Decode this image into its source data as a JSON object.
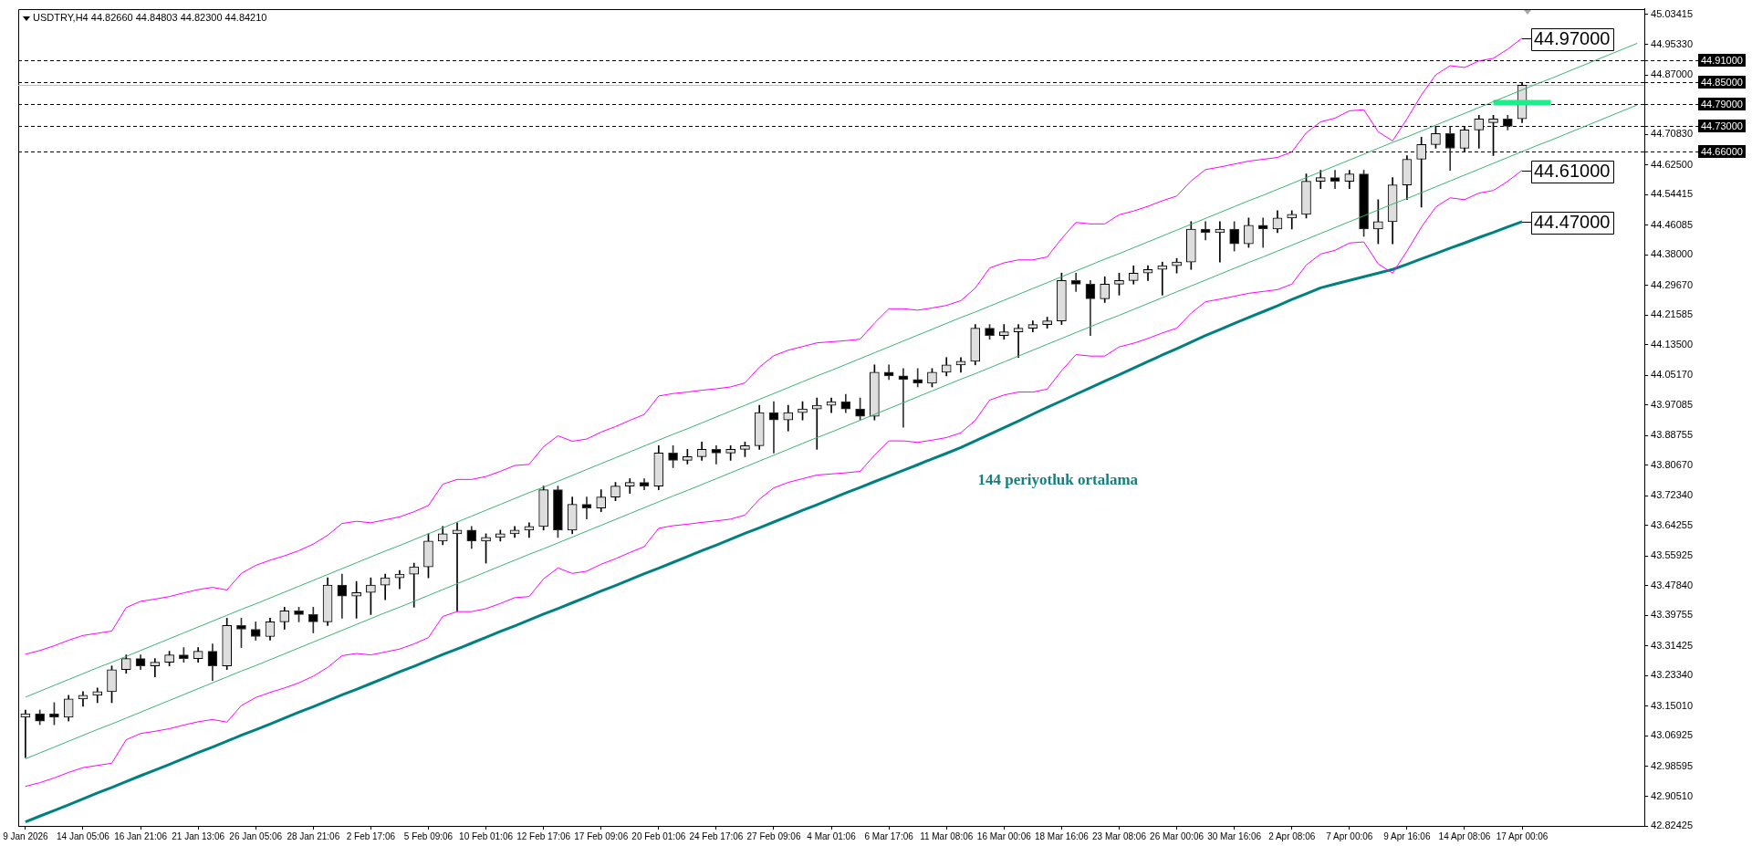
{
  "chart_data": {
    "type": "candlestick",
    "title": "USDTRY,H4 44.82660 44.84803 44.82300 44.84210",
    "categories": [
      "9 Jan 2026",
      null,
      null,
      null,
      "14 Jan 05:06",
      null,
      null,
      null,
      "16 Jan 21:06",
      null,
      null,
      null,
      "21 Jan 13:06",
      null,
      null,
      null,
      "26 Jan 05:06",
      null,
      null,
      null,
      "28 Jan 21:06",
      null,
      null,
      null,
      "2 Feb 17:06",
      null,
      null,
      null,
      "5 Feb 09:06",
      null,
      null,
      null,
      "10 Feb 01:06",
      null,
      null,
      null,
      "12 Feb 17:06",
      null,
      null,
      null,
      "17 Feb 09:06",
      null,
      null,
      null,
      "20 Feb 01:06",
      null,
      null,
      null,
      "24 Feb 17:06",
      null,
      null,
      null,
      "27 Feb 09:06",
      null,
      null,
      null,
      "4 Mar 01:06",
      null,
      null,
      null,
      "6 Mar 17:06",
      null,
      null,
      null,
      "11 Mar 08:06",
      null,
      null,
      null,
      "16 Mar 00:06",
      null,
      null,
      null,
      "18 Mar 16:06",
      null,
      null,
      null,
      "23 Mar 08:06",
      null,
      null,
      null,
      "26 Mar 00:06",
      null,
      null,
      null,
      "30 Mar 16:06",
      null,
      null,
      null,
      "2 Apr 08:06",
      null,
      null,
      null,
      "7 Apr 00:06",
      null,
      null,
      null,
      "9 Apr 16:06",
      null,
      null,
      null,
      "14 Apr 08:06",
      null,
      null,
      null,
      "17 Apr 00:06",
      null,
      null,
      null,
      null,
      null,
      null,
      null,
      null
    ],
    "ohlc": [
      [
        43.12,
        43.14,
        43.01,
        43.13
      ],
      [
        43.13,
        43.14,
        43.1,
        43.11
      ],
      [
        43.13,
        43.16,
        43.1,
        43.12
      ],
      [
        43.12,
        43.18,
        43.11,
        43.17
      ],
      [
        43.17,
        43.19,
        43.15,
        43.18
      ],
      [
        43.18,
        43.2,
        43.16,
        43.19
      ],
      [
        43.19,
        43.26,
        43.16,
        43.25
      ],
      [
        43.25,
        43.29,
        43.24,
        43.28
      ],
      [
        43.28,
        43.29,
        43.25,
        43.26
      ],
      [
        43.26,
        43.28,
        43.23,
        43.27
      ],
      [
        43.27,
        43.3,
        43.26,
        43.29
      ],
      [
        43.29,
        43.31,
        43.27,
        43.28
      ],
      [
        43.28,
        43.31,
        43.27,
        43.3
      ],
      [
        43.3,
        43.32,
        43.22,
        43.26
      ],
      [
        43.26,
        43.39,
        43.25,
        43.37
      ],
      [
        43.37,
        43.39,
        43.31,
        43.36
      ],
      [
        43.36,
        43.38,
        43.33,
        43.34
      ],
      [
        43.34,
        43.39,
        43.33,
        43.38
      ],
      [
        43.38,
        43.42,
        43.36,
        43.41
      ],
      [
        43.41,
        43.42,
        43.38,
        43.4
      ],
      [
        43.4,
        43.42,
        43.35,
        43.38
      ],
      [
        43.38,
        43.5,
        43.37,
        43.48
      ],
      [
        43.48,
        43.51,
        43.39,
        43.45
      ],
      [
        43.45,
        43.49,
        43.39,
        43.46
      ],
      [
        43.46,
        43.5,
        43.4,
        43.48
      ],
      [
        43.48,
        43.51,
        43.44,
        43.5
      ],
      [
        43.5,
        43.52,
        43.47,
        43.51
      ],
      [
        43.51,
        43.54,
        43.42,
        43.53
      ],
      [
        43.53,
        43.62,
        43.5,
        43.6
      ],
      [
        43.6,
        43.64,
        43.59,
        43.62
      ],
      [
        43.62,
        43.65,
        43.41,
        43.63
      ],
      [
        43.63,
        43.64,
        43.58,
        43.6
      ],
      [
        43.6,
        43.62,
        43.54,
        43.61
      ],
      [
        43.61,
        43.63,
        43.6,
        43.62
      ],
      [
        43.62,
        43.64,
        43.61,
        43.63
      ],
      [
        43.63,
        43.65,
        43.61,
        43.64
      ],
      [
        43.64,
        43.75,
        43.63,
        43.74
      ],
      [
        43.74,
        43.75,
        43.61,
        43.63
      ],
      [
        43.63,
        43.72,
        43.62,
        43.7
      ],
      [
        43.7,
        43.72,
        43.66,
        43.69
      ],
      [
        43.69,
        43.74,
        43.68,
        43.72
      ],
      [
        43.72,
        43.76,
        43.71,
        43.75
      ],
      [
        43.75,
        43.77,
        43.73,
        43.76
      ],
      [
        43.76,
        43.77,
        43.74,
        43.75
      ],
      [
        43.75,
        43.86,
        43.74,
        43.84
      ],
      [
        43.84,
        43.86,
        43.8,
        43.82
      ],
      [
        43.82,
        43.85,
        43.81,
        43.83
      ],
      [
        43.83,
        43.87,
        43.82,
        43.85
      ],
      [
        43.85,
        43.86,
        43.81,
        43.84
      ],
      [
        43.84,
        43.86,
        43.82,
        43.85
      ],
      [
        43.85,
        43.87,
        43.83,
        43.86
      ],
      [
        43.86,
        43.97,
        43.85,
        43.95
      ],
      [
        43.95,
        43.98,
        43.84,
        43.93
      ],
      [
        43.93,
        43.97,
        43.9,
        43.95
      ],
      [
        43.95,
        43.98,
        43.93,
        43.96
      ],
      [
        43.96,
        43.99,
        43.85,
        43.97
      ],
      [
        43.97,
        43.99,
        43.95,
        43.98
      ],
      [
        43.98,
        44.0,
        43.95,
        43.96
      ],
      [
        43.96,
        43.99,
        43.93,
        43.94
      ],
      [
        43.94,
        44.08,
        43.93,
        44.06
      ],
      [
        44.06,
        44.08,
        44.04,
        44.05
      ],
      [
        44.05,
        44.07,
        43.91,
        44.04
      ],
      [
        44.04,
        44.07,
        44.02,
        44.03
      ],
      [
        44.03,
        44.07,
        44.02,
        44.06
      ],
      [
        44.06,
        44.1,
        44.05,
        44.08
      ],
      [
        44.08,
        44.1,
        44.06,
        44.09
      ],
      [
        44.09,
        44.19,
        44.08,
        44.18
      ],
      [
        44.18,
        44.19,
        44.15,
        44.16
      ],
      [
        44.16,
        44.19,
        44.15,
        44.17
      ],
      [
        44.17,
        44.19,
        44.1,
        44.18
      ],
      [
        44.18,
        44.2,
        44.17,
        44.19
      ],
      [
        44.19,
        44.21,
        44.18,
        44.2
      ],
      [
        44.2,
        44.33,
        44.19,
        44.31
      ],
      [
        44.31,
        44.33,
        44.28,
        44.3
      ],
      [
        44.3,
        44.31,
        44.16,
        44.26
      ],
      [
        44.26,
        44.32,
        44.25,
        44.3
      ],
      [
        44.3,
        44.33,
        44.27,
        44.31
      ],
      [
        44.31,
        44.35,
        44.3,
        44.33
      ],
      [
        44.33,
        44.35,
        44.31,
        44.34
      ],
      [
        44.34,
        44.36,
        44.27,
        44.35
      ],
      [
        44.35,
        44.37,
        44.33,
        44.36
      ],
      [
        44.36,
        44.47,
        44.34,
        44.45
      ],
      [
        44.45,
        44.47,
        44.42,
        44.44
      ],
      [
        44.44,
        44.47,
        44.36,
        44.45
      ],
      [
        44.45,
        44.47,
        44.39,
        44.41
      ],
      [
        44.41,
        44.48,
        44.4,
        44.46
      ],
      [
        44.46,
        44.48,
        44.4,
        44.45
      ],
      [
        44.45,
        44.5,
        44.44,
        44.48
      ],
      [
        44.48,
        44.5,
        44.45,
        44.49
      ],
      [
        44.49,
        44.6,
        44.48,
        44.58
      ],
      [
        44.58,
        44.61,
        44.56,
        44.59
      ],
      [
        44.59,
        44.61,
        44.56,
        44.58
      ],
      [
        44.58,
        44.61,
        44.56,
        44.6
      ],
      [
        44.6,
        44.61,
        44.43,
        44.45
      ],
      [
        44.45,
        44.53,
        44.41,
        44.47
      ],
      [
        44.47,
        44.59,
        44.41,
        44.57
      ],
      [
        44.57,
        44.65,
        44.53,
        44.64
      ],
      [
        44.64,
        44.7,
        44.51,
        44.68
      ],
      [
        44.68,
        44.73,
        44.67,
        44.71
      ],
      [
        44.71,
        44.73,
        44.61,
        44.67
      ],
      [
        44.67,
        44.73,
        44.66,
        44.72
      ],
      [
        44.72,
        44.76,
        44.67,
        44.75
      ],
      [
        44.74,
        44.76,
        44.65,
        44.75
      ],
      [
        44.75,
        44.76,
        44.72,
        44.73
      ],
      [
        44.75,
        44.84803,
        44.74,
        44.8421
      ],
      null,
      null,
      null,
      null,
      null,
      null,
      null,
      null
    ],
    "series": [
      {
        "type": "line",
        "color": "#ff00ff",
        "values": [
          43.292,
          43.302,
          43.315,
          43.33,
          43.343,
          43.349,
          43.355,
          43.419,
          43.436,
          43.442,
          43.449,
          43.459,
          43.468,
          43.474,
          43.467,
          43.512,
          43.534,
          43.548,
          43.56,
          43.574,
          43.592,
          43.616,
          43.648,
          43.654,
          43.65,
          43.658,
          43.666,
          43.68,
          43.697,
          43.755,
          43.768,
          43.768,
          43.776,
          43.79,
          43.806,
          43.809,
          43.857,
          43.887,
          43.872,
          43.878,
          43.897,
          43.912,
          43.929,
          43.945,
          43.995,
          44.002,
          44.006,
          44.011,
          44.015,
          44.02,
          44.031,
          44.074,
          44.105,
          44.12,
          44.13,
          44.14,
          44.143,
          44.146,
          44.15,
          44.194,
          44.233,
          44.233,
          44.229,
          44.235,
          44.242,
          44.255,
          44.289,
          44.344,
          44.358,
          44.366,
          44.366,
          44.374,
          44.424,
          44.468,
          44.464,
          44.464,
          44.489,
          44.499,
          44.512,
          44.527,
          44.54,
          44.581,
          44.612,
          44.619,
          44.627,
          44.635,
          44.64,
          44.645,
          44.66,
          44.712,
          44.742,
          44.752,
          44.772,
          44.775,
          44.715,
          44.69,
          44.75,
          44.815,
          44.87,
          44.895,
          44.89,
          44.908,
          44.915,
          44.94,
          44.97,
          null,
          null,
          null,
          null,
          null,
          null,
          null,
          null
        ],
        "value_labels": [
          null,
          null,
          null,
          null,
          null,
          null,
          null,
          null,
          null,
          null,
          null,
          null,
          null,
          null,
          null,
          null,
          null,
          null,
          null,
          null,
          null,
          null,
          null,
          null,
          null,
          null,
          null,
          null,
          null,
          null,
          null,
          null,
          null,
          null,
          null,
          null,
          null,
          null,
          null,
          null,
          null,
          null,
          null,
          null,
          null,
          null,
          null,
          null,
          null,
          null,
          null,
          null,
          null,
          null,
          null,
          null,
          null,
          null,
          null,
          null,
          null,
          null,
          null,
          null,
          null,
          null,
          null,
          null,
          null,
          null,
          null,
          null,
          null,
          null,
          null,
          null,
          null,
          null,
          null,
          null,
          null,
          null,
          null,
          null,
          null,
          null,
          null,
          null,
          null,
          null,
          null,
          null,
          null,
          null,
          null,
          null,
          null,
          null,
          null,
          null,
          null,
          null,
          null,
          null,
          "44.97000",
          null,
          null,
          null,
          null,
          null,
          null,
          null,
          null
        ]
      },
      {
        "type": "line",
        "color": "#ff00ff",
        "values": [
          42.932,
          42.942,
          42.955,
          42.97,
          42.983,
          42.989,
          42.995,
          43.059,
          43.076,
          43.082,
          43.089,
          43.099,
          43.108,
          43.114,
          43.107,
          43.152,
          43.174,
          43.188,
          43.2,
          43.214,
          43.232,
          43.256,
          43.288,
          43.294,
          43.29,
          43.298,
          43.306,
          43.32,
          43.337,
          43.395,
          43.408,
          43.408,
          43.416,
          43.43,
          43.446,
          43.449,
          43.497,
          43.527,
          43.512,
          43.518,
          43.537,
          43.552,
          43.569,
          43.585,
          43.635,
          43.642,
          43.646,
          43.651,
          43.655,
          43.66,
          43.671,
          43.714,
          43.745,
          43.76,
          43.77,
          43.78,
          43.783,
          43.786,
          43.79,
          43.834,
          43.873,
          43.873,
          43.869,
          43.875,
          43.882,
          43.895,
          43.929,
          43.984,
          43.998,
          44.006,
          44.006,
          44.014,
          44.064,
          44.108,
          44.104,
          44.104,
          44.129,
          44.139,
          44.152,
          44.167,
          44.18,
          44.221,
          44.252,
          44.259,
          44.267,
          44.275,
          44.28,
          44.285,
          44.3,
          44.352,
          44.382,
          44.392,
          44.412,
          44.415,
          44.355,
          44.33,
          44.39,
          44.455,
          44.51,
          44.535,
          44.53,
          44.548,
          44.555,
          44.58,
          44.61,
          null,
          null,
          null,
          null,
          null,
          null,
          null,
          null
        ],
        "value_labels": [
          null,
          null,
          null,
          null,
          null,
          null,
          null,
          null,
          null,
          null,
          null,
          null,
          null,
          null,
          null,
          null,
          null,
          null,
          null,
          null,
          null,
          null,
          null,
          null,
          null,
          null,
          null,
          null,
          null,
          null,
          null,
          null,
          null,
          null,
          null,
          null,
          null,
          null,
          null,
          null,
          null,
          null,
          null,
          null,
          null,
          null,
          null,
          null,
          null,
          null,
          null,
          null,
          null,
          null,
          null,
          null,
          null,
          null,
          null,
          null,
          null,
          null,
          null,
          null,
          null,
          null,
          null,
          null,
          null,
          null,
          null,
          null,
          null,
          null,
          null,
          null,
          null,
          null,
          null,
          null,
          null,
          null,
          null,
          null,
          null,
          null,
          null,
          null,
          null,
          null,
          null,
          null,
          null,
          null,
          null,
          null,
          null,
          null,
          null,
          null,
          null,
          null,
          null,
          null,
          "44.61000",
          null,
          null,
          null,
          null,
          null,
          null,
          null,
          null
        ]
      },
      {
        "type": "line",
        "color": "#008080",
        "values": [
          42.835,
          42.851,
          42.866,
          42.882,
          42.898,
          42.914,
          42.929,
          42.945,
          42.961,
          42.976,
          42.992,
          43.008,
          43.024,
          43.039,
          43.055,
          43.071,
          43.086,
          43.102,
          43.118,
          43.134,
          43.149,
          43.165,
          43.181,
          43.196,
          43.212,
          43.228,
          43.244,
          43.259,
          43.275,
          43.291,
          43.306,
          43.322,
          43.338,
          43.354,
          43.369,
          43.385,
          43.401,
          43.416,
          43.432,
          43.448,
          43.464,
          43.479,
          43.495,
          43.511,
          43.526,
          43.542,
          43.558,
          43.574,
          43.589,
          43.605,
          43.621,
          43.636,
          43.652,
          43.668,
          43.684,
          43.699,
          43.715,
          43.731,
          43.746,
          43.762,
          43.777,
          43.793,
          43.808,
          43.824,
          43.839,
          43.855,
          43.873,
          43.891,
          43.909,
          43.927,
          43.946,
          43.964,
          43.982,
          44.0,
          44.018,
          44.036,
          44.053,
          44.071,
          44.089,
          44.107,
          44.124,
          44.142,
          44.16,
          44.176,
          44.193,
          44.209,
          44.225,
          44.241,
          44.258,
          44.274,
          44.29,
          44.3,
          44.31,
          44.32,
          44.33,
          44.34,
          44.354,
          44.369,
          44.383,
          44.398,
          44.412,
          44.427,
          44.441,
          44.456,
          44.47,
          null,
          null,
          null,
          null,
          null,
          null,
          null,
          null
        ],
        "value_labels": [
          null,
          null,
          null,
          null,
          null,
          null,
          null,
          null,
          null,
          null,
          null,
          null,
          null,
          null,
          null,
          null,
          null,
          null,
          null,
          null,
          null,
          null,
          null,
          null,
          null,
          null,
          null,
          null,
          null,
          null,
          null,
          null,
          null,
          null,
          null,
          null,
          null,
          null,
          null,
          null,
          null,
          null,
          null,
          null,
          null,
          null,
          null,
          null,
          null,
          null,
          null,
          null,
          null,
          null,
          null,
          null,
          null,
          null,
          null,
          null,
          null,
          null,
          null,
          null,
          null,
          null,
          null,
          null,
          null,
          null,
          null,
          null,
          null,
          null,
          null,
          null,
          null,
          null,
          null,
          null,
          null,
          null,
          null,
          null,
          null,
          null,
          null,
          null,
          null,
          null,
          null,
          null,
          null,
          null,
          null,
          null,
          null,
          null,
          null,
          null,
          null,
          null,
          null,
          null,
          "44.47000",
          null,
          null,
          null,
          null,
          null,
          null,
          null,
          null
        ]
      },
      {
        "type": "line",
        "color": "#3cb371",
        "values": [
          43.175,
          43.191,
          43.207,
          43.223,
          43.239,
          43.255,
          43.27,
          43.286,
          43.302,
          43.318,
          43.334,
          43.35,
          43.366,
          43.382,
          43.398,
          43.414,
          43.429,
          43.445,
          43.461,
          43.477,
          43.493,
          43.509,
          43.525,
          43.541,
          43.557,
          43.573,
          43.588,
          43.604,
          43.62,
          43.636,
          43.652,
          43.668,
          43.684,
          43.7,
          43.716,
          43.732,
          43.747,
          43.763,
          43.779,
          43.795,
          43.811,
          43.827,
          43.843,
          43.859,
          43.875,
          43.891,
          43.906,
          43.922,
          43.938,
          43.954,
          43.97,
          43.986,
          44.002,
          44.018,
          44.034,
          44.05,
          44.065,
          44.081,
          44.097,
          44.113,
          44.129,
          44.145,
          44.161,
          44.177,
          44.193,
          44.209,
          44.224,
          44.24,
          44.256,
          44.272,
          44.288,
          44.304,
          44.32,
          44.336,
          44.352,
          44.368,
          44.383,
          44.399,
          44.415,
          44.431,
          44.447,
          44.463,
          44.479,
          44.495,
          44.511,
          44.527,
          44.542,
          44.558,
          44.574,
          44.59,
          44.606,
          44.622,
          44.638,
          44.654,
          44.67,
          44.686,
          44.701,
          44.717,
          44.733,
          44.749,
          44.765,
          44.781,
          44.797,
          44.813,
          44.829,
          44.845,
          44.86,
          44.876,
          44.892,
          44.908,
          44.924,
          44.94,
          44.956
        ]
      },
      {
        "type": "line",
        "color": "#3cb371",
        "values": [
          43.007,
          43.023,
          43.039,
          43.055,
          43.071,
          43.087,
          43.102,
          43.118,
          43.134,
          43.15,
          43.166,
          43.182,
          43.198,
          43.214,
          43.23,
          43.246,
          43.261,
          43.277,
          43.293,
          43.309,
          43.325,
          43.341,
          43.357,
          43.373,
          43.389,
          43.405,
          43.42,
          43.436,
          43.452,
          43.468,
          43.484,
          43.5,
          43.516,
          43.532,
          43.548,
          43.564,
          43.579,
          43.595,
          43.611,
          43.627,
          43.643,
          43.659,
          43.675,
          43.691,
          43.707,
          43.723,
          43.738,
          43.754,
          43.77,
          43.786,
          43.802,
          43.818,
          43.834,
          43.85,
          43.866,
          43.882,
          43.897,
          43.913,
          43.929,
          43.945,
          43.961,
          43.977,
          43.993,
          44.009,
          44.025,
          44.041,
          44.056,
          44.072,
          44.088,
          44.104,
          44.12,
          44.136,
          44.152,
          44.168,
          44.184,
          44.2,
          44.215,
          44.231,
          44.247,
          44.263,
          44.279,
          44.295,
          44.311,
          44.327,
          44.343,
          44.359,
          44.374,
          44.39,
          44.406,
          44.422,
          44.438,
          44.454,
          44.47,
          44.486,
          44.502,
          44.518,
          44.533,
          44.549,
          44.565,
          44.581,
          44.597,
          44.613,
          44.629,
          44.645,
          44.661,
          44.677,
          44.692,
          44.708,
          44.724,
          44.74,
          44.756,
          44.772,
          44.788
        ]
      },
      {
        "type": "line",
        "color": "#1ded8a",
        "values": [
          null,
          null,
          null,
          null,
          null,
          null,
          null,
          null,
          null,
          null,
          null,
          null,
          null,
          null,
          null,
          null,
          null,
          null,
          null,
          null,
          null,
          null,
          null,
          null,
          null,
          null,
          null,
          null,
          null,
          null,
          null,
          null,
          null,
          null,
          null,
          null,
          null,
          null,
          null,
          null,
          null,
          null,
          null,
          null,
          null,
          null,
          null,
          null,
          null,
          null,
          null,
          null,
          null,
          null,
          null,
          null,
          null,
          null,
          null,
          null,
          null,
          null,
          null,
          null,
          null,
          null,
          null,
          null,
          null,
          null,
          null,
          null,
          null,
          null,
          null,
          null,
          null,
          null,
          null,
          null,
          null,
          null,
          null,
          null,
          null,
          null,
          null,
          null,
          null,
          null,
          null,
          null,
          null,
          null,
          null,
          null,
          null,
          null,
          null,
          null,
          null,
          null,
          44.794,
          44.794,
          44.794,
          44.794,
          44.794,
          null,
          null,
          null,
          null,
          null,
          null
        ]
      }
    ],
    "ylim": [
      42.82425,
      45.05
    ],
    "yticks": [
      42.82425,
      {
        "value": 42.9051,
        "label": "42.90510"
      },
      42.98595,
      43.06925,
      {
        "value": 43.1501,
        "label": "43.15010"
      },
      {
        "value": 43.2334,
        "label": "43.23340"
      },
      43.31425,
      43.39755,
      {
        "value": 43.4784,
        "label": "43.47840"
      },
      43.55925,
      43.64255,
      {
        "value": 43.7234,
        "label": "43.72340"
      },
      {
        "value": 43.8067,
        "label": "43.80670"
      },
      43.88755,
      43.97085,
      {
        "value": 44.0517,
        "label": "44.05170"
      },
      {
        "value": 44.135,
        "label": "44.13500"
      },
      44.21585,
      {
        "value": 44.2967,
        "label": "44.29670"
      },
      {
        "value": 44.38,
        "label": "44.38000"
      },
      44.46085,
      44.54415,
      {
        "value": 44.625,
        "label": "44.62500"
      },
      {
        "value": 44.7083,
        "label": "44.70830"
      },
      {
        "value": 44.87,
        "label": "44.87000"
      },
      {
        "value": 44.9533,
        "label": "44.95330"
      },
      45.03415
    ],
    "ref_lines": [
      {
        "axis": "y",
        "value": 44.91,
        "label": "44.91000",
        "color": "#000000",
        "line_style": "dashed"
      },
      {
        "axis": "y",
        "value": 44.85,
        "label": "44.85000",
        "color": "#000000",
        "line_style": "dashed"
      },
      {
        "axis": "y",
        "value": 44.8421,
        "color": "#c0c0c0",
        "line_style": "solid"
      },
      {
        "axis": "y",
        "value": 44.79,
        "label": "44.79000",
        "color": "#000000",
        "line_style": "dashed"
      },
      {
        "axis": "y",
        "value": 44.73,
        "label": "44.73000",
        "color": "#000000",
        "line_style": "dashed"
      },
      {
        "axis": "y",
        "value": 44.66,
        "label": "44.66000",
        "color": "#000000",
        "line_style": "dashed"
      }
    ],
    "annotations": [
      "144 periyotluk ortalama"
    ],
    "grid": false,
    "legend": false
  }
}
